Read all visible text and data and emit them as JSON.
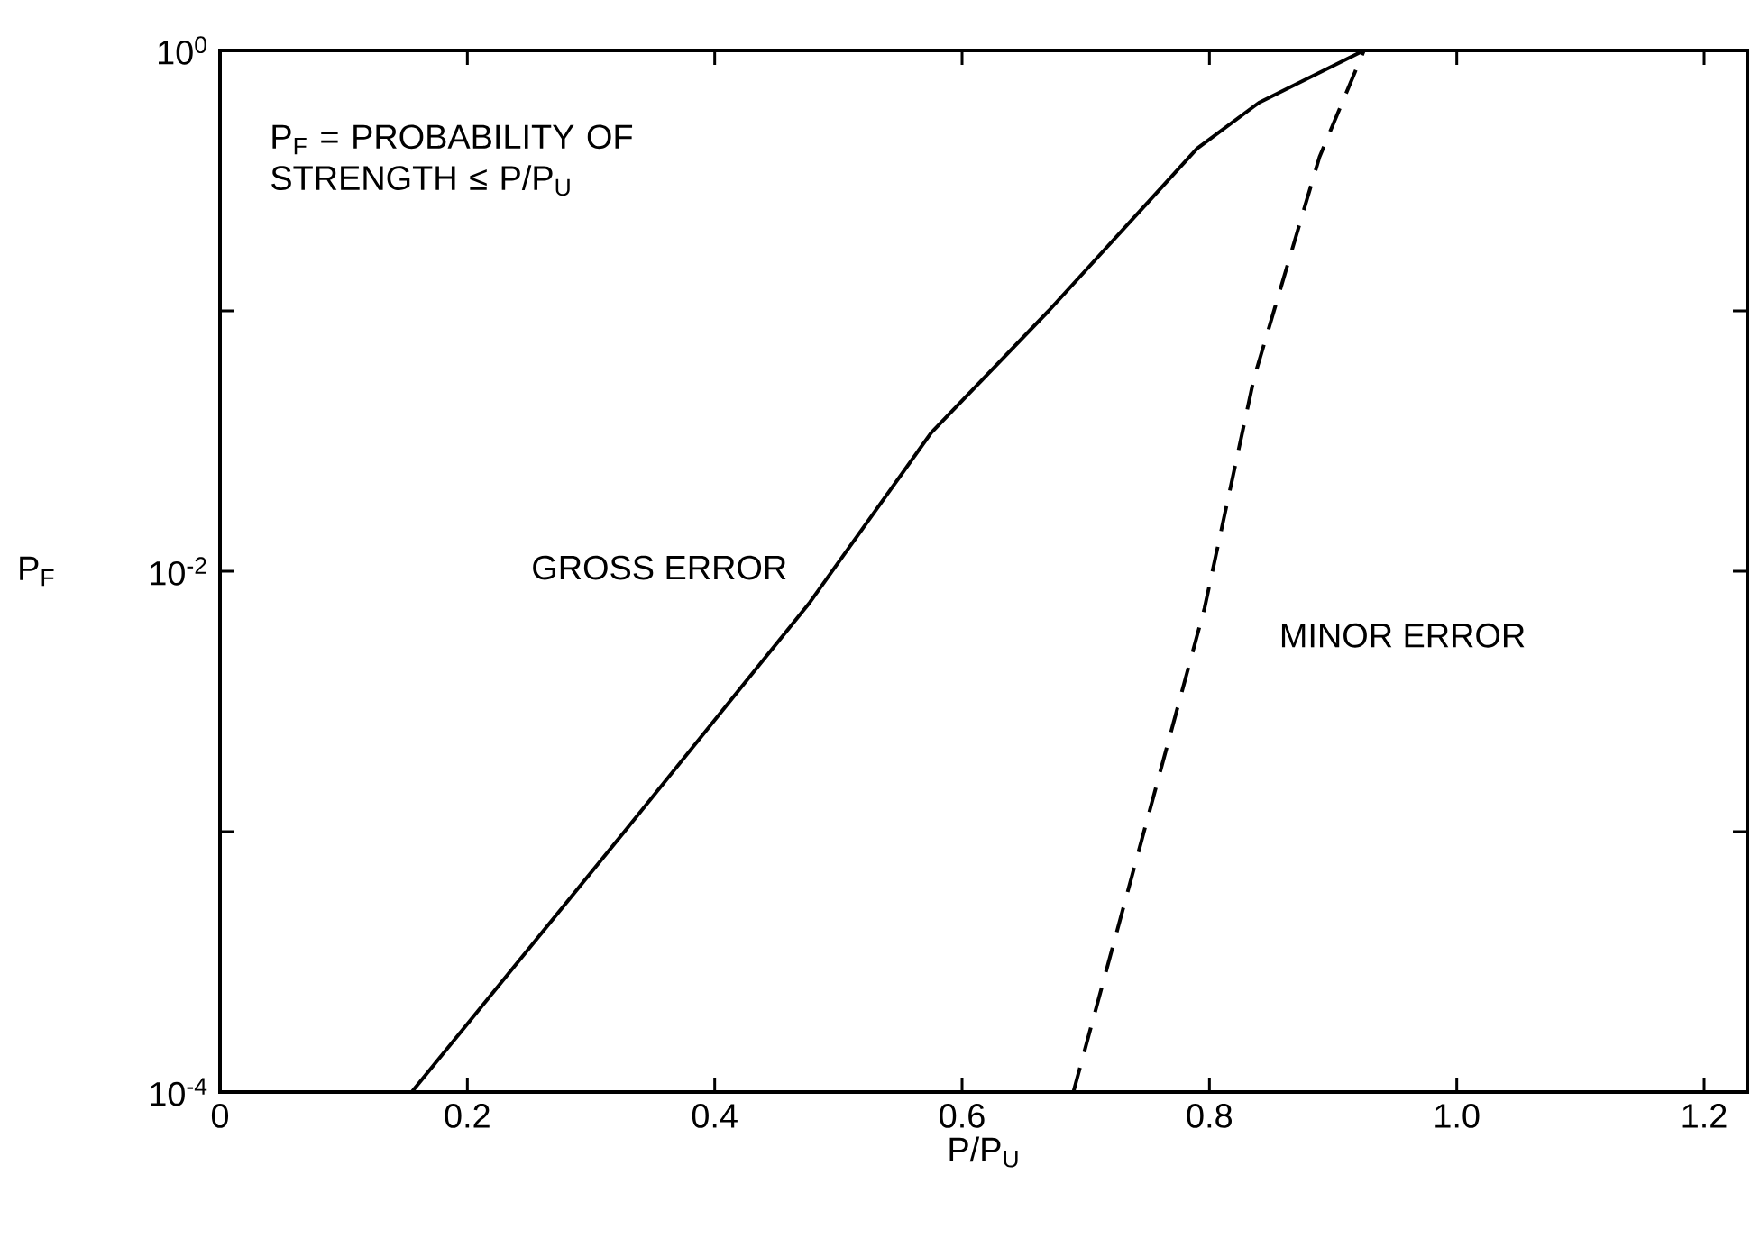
{
  "chart_data": {
    "type": "line",
    "xlabel": "P/P$_{U}$",
    "ylabel": "P$_{F}$",
    "log": "y",
    "xlim": [
      0,
      1.235
    ],
    "ylim": [
      0.0001,
      1
    ],
    "xticks": [
      0,
      0.2,
      0.4,
      0.6,
      0.8,
      {
        "value": 1,
        "label": "1.0"
      },
      1.2
    ],
    "yticks": [
      {
        "value": 0.0001,
        "label": "10$^{-4}$"
      },
      {
        "value": 0.001,
        "label": null
      },
      {
        "value": 0.01,
        "label": "10$^{-2}$"
      },
      {
        "value": 0.1,
        "label": null
      },
      {
        "value": 1,
        "label": "10$^{0}$"
      }
    ],
    "grid": false,
    "legend": false,
    "marker": "none",
    "annotations": [
      "P$_{F}$ = PROBABILITY OF STRENGTH ≤ P/P$_{U}$"
    ],
    "series": [
      {
        "name": "GROSS ERROR",
        "color": "#000000",
        "line_style": "solid",
        "x": [
          0.155,
          0.327,
          0.477,
          0.575,
          0.67,
          0.79,
          0.84,
          0.925,
          1.235
        ],
        "values": [
          0.0001,
          0.001,
          0.0076,
          0.034,
          0.1,
          0.42,
          0.63,
          1,
          1
        ]
      },
      {
        "name": "MINOR ERROR",
        "color": "#000000",
        "line_style": "dashed",
        "x": [
          0.69,
          0.796,
          0.836,
          0.889,
          0.925
        ],
        "values": [
          0.0001,
          0.0072,
          0.055,
          0.39,
          1
        ]
      }
    ]
  }
}
